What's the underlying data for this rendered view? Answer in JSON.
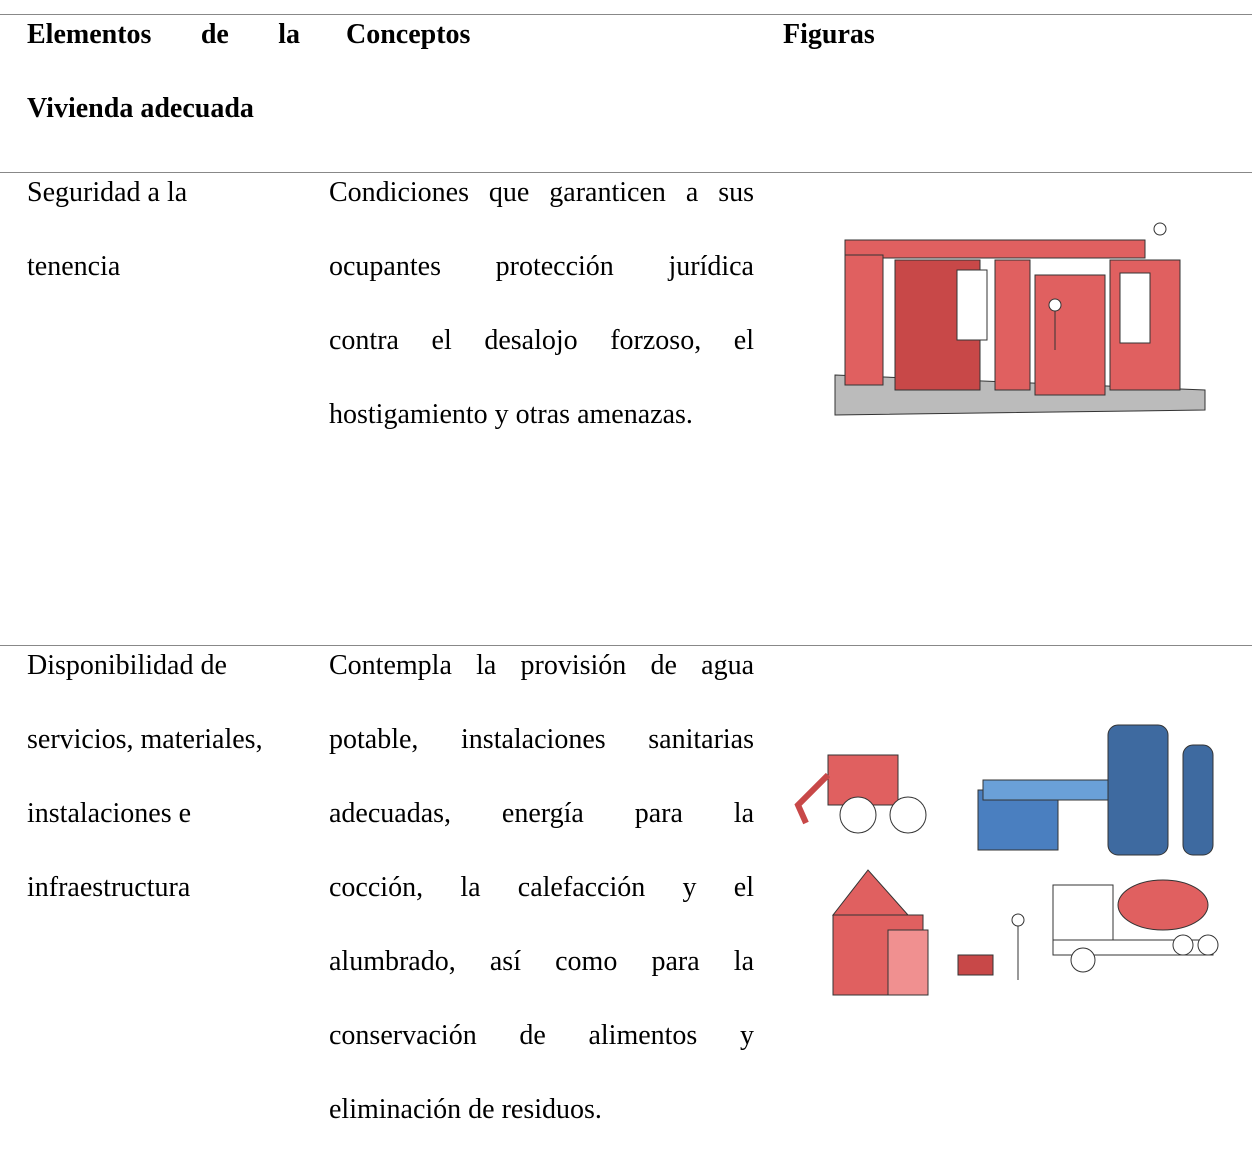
{
  "header": {
    "columns": [
      [
        "Elementos de la",
        "Vivienda adecuada"
      ],
      [
        "Conceptos"
      ],
      [
        "Figuras"
      ]
    ]
  },
  "table": {
    "rows": [
      [
        [
          "Seguridad a la",
          "tenencia"
        ],
        [
          "Condiciones que garanticen a sus",
          "ocupantes protección jurídica",
          "contra el desalojo forzoso, el",
          "hostigamiento y otras amenazas."
        ]
      ],
      [
        [
          "Disponibilidad de",
          "servicios, materiales,",
          "instalaciones e",
          "infraestructura"
        ],
        [
          "Contempla la provisión de agua",
          "potable, instalaciones sanitarias",
          "adecuadas, energía para la",
          "cocción, la calefacción y el",
          "alumbrado, así como para la",
          "conservación de alimentos y",
          "eliminación de residuos."
        ]
      ]
    ]
  }
}
